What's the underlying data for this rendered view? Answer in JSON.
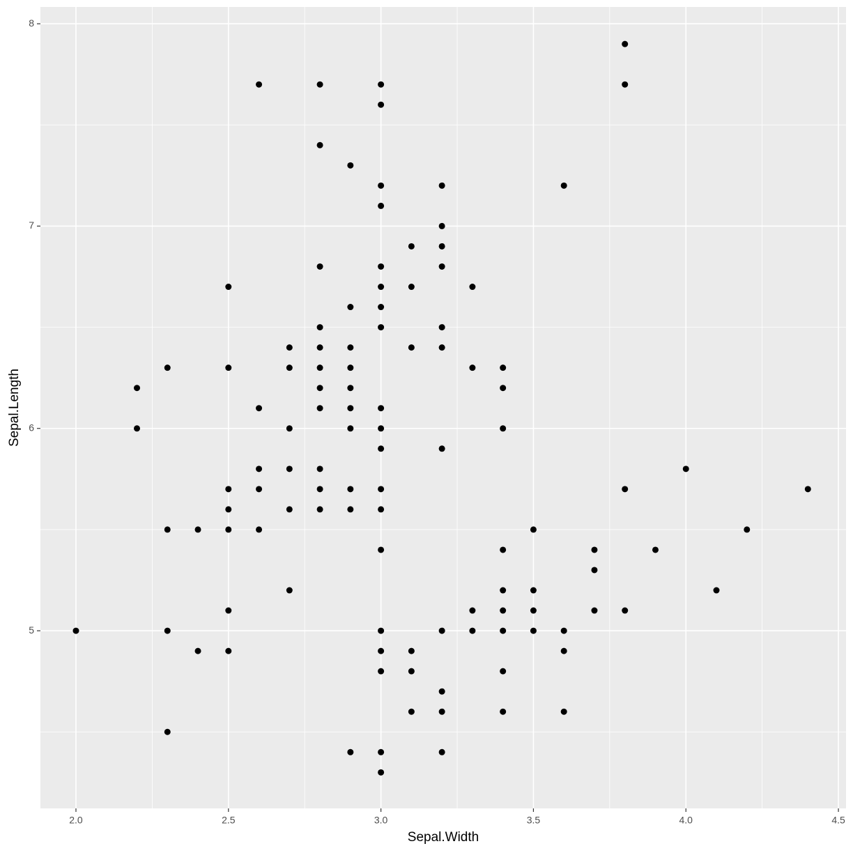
{
  "chart_data": {
    "type": "scatter",
    "x_label": "Sepal.Width",
    "y_label": "Sepal.Length",
    "xlim": [
      1.8835,
      4.525
    ],
    "ylim": [
      4.122,
      8.083
    ],
    "xticks": [
      {
        "value": 2,
        "label": "2.0"
      },
      {
        "value": 2.5,
        "label": "2.5"
      },
      {
        "value": 3,
        "label": "3.0"
      },
      {
        "value": 3.5,
        "label": "3.5"
      },
      {
        "value": 4,
        "label": "4.0"
      },
      {
        "value": 4.5,
        "label": "4.5"
      }
    ],
    "yticks": [
      5,
      6,
      7,
      8
    ],
    "grid": true,
    "color": "#000000",
    "x": [
      3.8,
      2.6,
      2.8,
      3.0,
      3.8,
      3.0,
      2.8,
      2.9,
      3.0,
      3.2,
      3.6,
      3.0,
      3.2,
      3.1,
      3.2,
      2.8,
      3.0,
      3.2,
      2.5,
      3.0,
      3.1,
      3.3,
      2.9,
      3.0,
      2.8,
      3.0,
      3.2,
      2.7,
      2.8,
      2.9,
      3.1,
      3.2,
      2.3,
      2.5,
      2.7,
      2.8,
      2.9,
      3.3,
      3.4,
      2.2,
      2.8,
      2.9,
      3.4,
      2.6,
      2.8,
      2.9,
      3.0,
      2.2,
      2.7,
      2.9,
      3.0,
      3.4,
      3.0,
      3.2,
      2.6,
      2.7,
      2.8,
      4.0,
      2.5,
      2.6,
      2.8,
      2.9,
      3.0,
      3.8,
      4.4,
      2.5,
      2.7,
      2.8,
      2.9,
      3.0,
      2.3,
      2.4,
      2.5,
      2.6,
      3.5,
      4.2,
      3.0,
      3.4,
      3.7,
      3.9,
      3.7,
      2.7,
      3.4,
      3.5,
      4.1,
      2.5,
      3.3,
      3.4,
      3.5,
      3.7,
      3.8,
      2.0,
      2.3,
      3.0,
      3.2,
      3.3,
      3.4,
      3.5,
      3.6,
      2.4,
      2.5,
      3.0,
      3.1,
      3.6,
      3.0,
      3.1,
      3.4,
      3.2,
      3.1,
      3.2,
      3.4,
      3.6,
      2.3,
      2.9,
      3.0,
      3.2,
      3.0
    ],
    "values": [
      7.9,
      7.7,
      7.7,
      7.7,
      7.7,
      7.6,
      7.4,
      7.3,
      7.2,
      7.2,
      7.2,
      7.1,
      7.0,
      6.9,
      6.9,
      6.8,
      6.8,
      6.8,
      6.7,
      6.7,
      6.7,
      6.7,
      6.6,
      6.6,
      6.5,
      6.5,
      6.5,
      6.4,
      6.4,
      6.4,
      6.4,
      6.4,
      6.3,
      6.3,
      6.3,
      6.3,
      6.3,
      6.3,
      6.3,
      6.2,
      6.2,
      6.2,
      6.2,
      6.1,
      6.1,
      6.1,
      6.1,
      6.0,
      6.0,
      6.0,
      6.0,
      6.0,
      5.9,
      5.9,
      5.8,
      5.8,
      5.8,
      5.8,
      5.7,
      5.7,
      5.7,
      5.7,
      5.7,
      5.7,
      5.7,
      5.6,
      5.6,
      5.6,
      5.6,
      5.6,
      5.5,
      5.5,
      5.5,
      5.5,
      5.5,
      5.5,
      5.4,
      5.4,
      5.4,
      5.4,
      5.3,
      5.2,
      5.2,
      5.2,
      5.2,
      5.1,
      5.1,
      5.1,
      5.1,
      5.1,
      5.1,
      5.0,
      5.0,
      5.0,
      5.0,
      5.0,
      5.0,
      5.0,
      5.0,
      4.9,
      4.9,
      4.9,
      4.9,
      4.9,
      4.8,
      4.8,
      4.8,
      4.7,
      4.6,
      4.6,
      4.6,
      4.6,
      4.5,
      4.4,
      4.4,
      4.4,
      4.3
    ]
  }
}
